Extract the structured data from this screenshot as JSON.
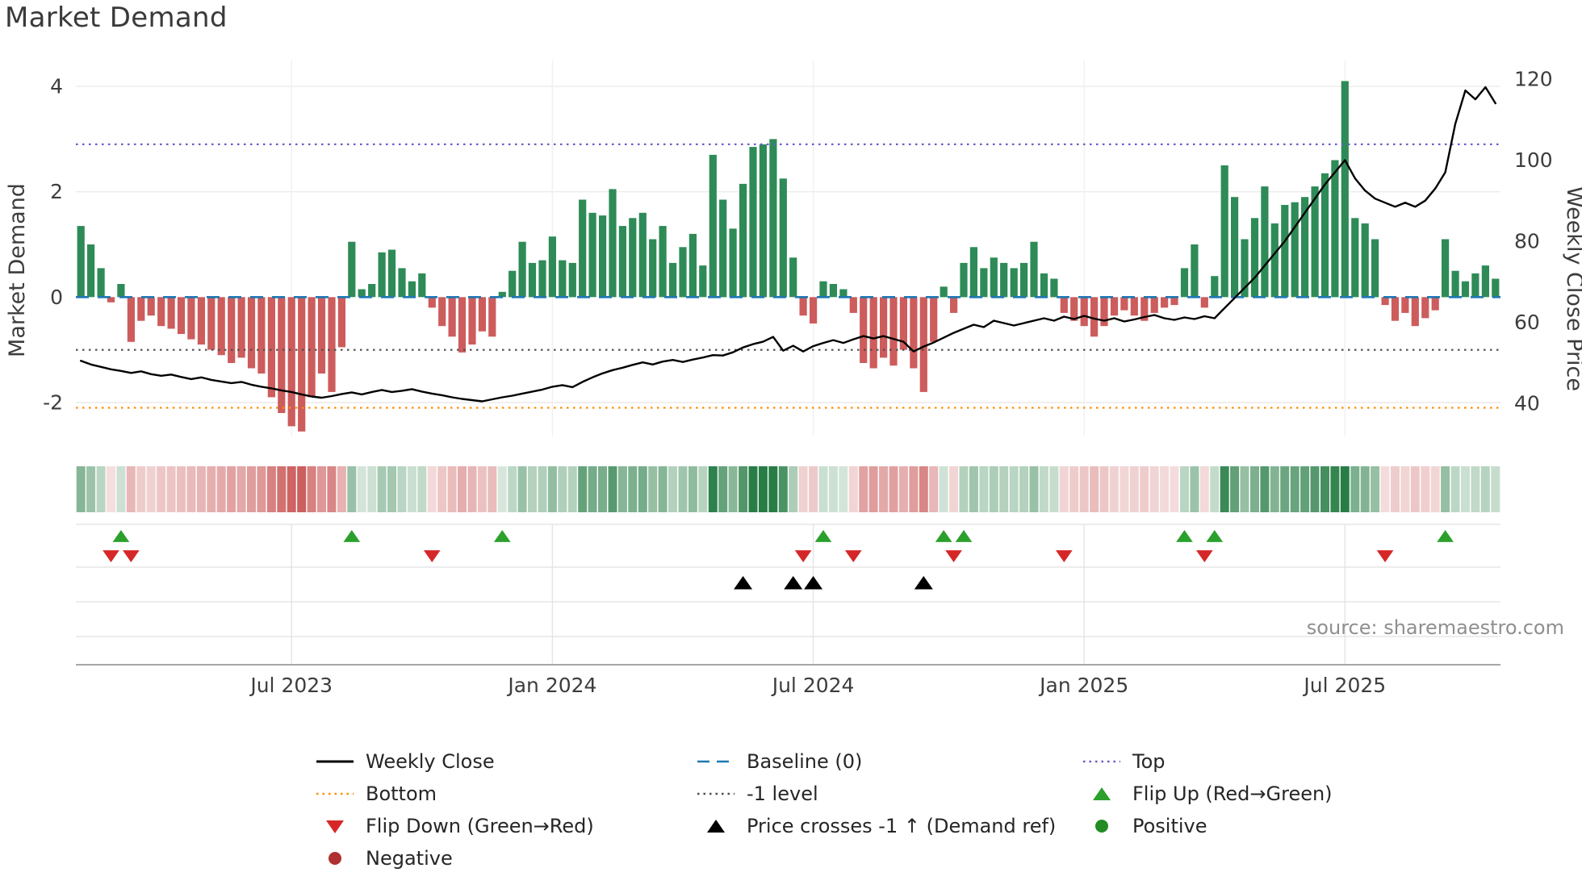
{
  "title": "Market Demand",
  "source": "source: sharemaestro.com",
  "legend": {
    "items": [
      {
        "id": "weekly-close",
        "label": "Weekly Close",
        "swatch": "solid-line",
        "color": "#000000"
      },
      {
        "id": "baseline-0",
        "label": "Baseline (0)",
        "swatch": "dashed-line",
        "color": "#1f77b4"
      },
      {
        "id": "top",
        "label": "Top",
        "swatch": "dotted-line",
        "color": "#6a5acd"
      },
      {
        "id": "bottom",
        "label": "Bottom",
        "swatch": "dotted-line",
        "color": "#ff8c00"
      },
      {
        "id": "minus-1-level",
        "label": "-1 level",
        "swatch": "dotted-line",
        "color": "#4d4d4d"
      },
      {
        "id": "flip-up",
        "label": "Flip Up (Red→Green)",
        "swatch": "triangle-up",
        "color": "#2ca02c"
      },
      {
        "id": "flip-down",
        "label": "Flip Down (Green→Red)",
        "swatch": "triangle-down",
        "color": "#d62728"
      },
      {
        "id": "price-crosses-minus-1",
        "label": "Price crosses -1 ↑ (Demand ref)",
        "swatch": "triangle-up",
        "color": "#000000"
      },
      {
        "id": "positive",
        "label": "Positive",
        "swatch": "circle",
        "color": "#228b22"
      },
      {
        "id": "negative",
        "label": "Negative",
        "swatch": "circle",
        "color": "#b03030"
      }
    ]
  },
  "chart_data": {
    "type": "combo",
    "title": "Market Demand",
    "x_unit": "week",
    "x_ticks": [
      {
        "label": "Jul 2023",
        "week": 21
      },
      {
        "label": "Jan 2024",
        "week": 47
      },
      {
        "label": "Jul 2024",
        "week": 73
      },
      {
        "label": "Jan 2025",
        "week": 100
      },
      {
        "label": "Jul 2025",
        "week": 126
      }
    ],
    "left_axis": {
      "label": "Market Demand",
      "ticks": [
        4,
        2,
        0,
        -2
      ],
      "range": [
        -2.63,
        4.49
      ]
    },
    "right_axis": {
      "label": "Weekly Close Price",
      "ticks": [
        120,
        100,
        80,
        60,
        40
      ],
      "range": [
        32,
        124.5
      ]
    },
    "grid": true,
    "series": [
      {
        "name": "Market Demand",
        "type": "bar",
        "axis": "left",
        "positive_color": "#2e8b57",
        "negative_color": "#cd5c5c",
        "values": [
          1.35,
          1.0,
          0.55,
          -0.1,
          0.25,
          -0.85,
          -0.45,
          -0.35,
          -0.55,
          -0.6,
          -0.7,
          -0.8,
          -0.9,
          -1.0,
          -1.1,
          -1.25,
          -1.15,
          -1.35,
          -1.45,
          -1.9,
          -2.2,
          -2.45,
          -2.55,
          -1.9,
          -1.45,
          -1.8,
          -0.95,
          1.05,
          0.15,
          0.25,
          0.85,
          0.9,
          0.55,
          0.3,
          0.45,
          -0.2,
          -0.55,
          -0.75,
          -1.05,
          -0.9,
          -0.65,
          -0.75,
          0.1,
          0.5,
          1.05,
          0.65,
          0.7,
          1.15,
          0.7,
          0.65,
          1.85,
          1.6,
          1.55,
          2.05,
          1.35,
          1.5,
          1.6,
          1.1,
          1.35,
          0.65,
          0.95,
          1.2,
          0.6,
          2.7,
          1.85,
          1.3,
          2.15,
          2.85,
          2.9,
          3.0,
          2.25,
          0.75,
          -0.35,
          -0.5,
          0.3,
          0.25,
          0.15,
          -0.3,
          -1.25,
          -1.35,
          -1.15,
          -1.3,
          -1.0,
          -1.35,
          -1.8,
          -0.85,
          0.2,
          -0.3,
          0.65,
          0.95,
          0.55,
          0.75,
          0.65,
          0.55,
          0.65,
          1.05,
          0.45,
          0.35,
          -0.3,
          -0.45,
          -0.55,
          -0.75,
          -0.55,
          -0.35,
          -0.25,
          -0.35,
          -0.45,
          -0.3,
          -0.2,
          -0.15,
          0.55,
          1.0,
          -0.2,
          0.4,
          2.5,
          1.9,
          1.1,
          1.5,
          2.1,
          1.4,
          1.75,
          1.8,
          1.9,
          2.1,
          2.35,
          2.6,
          4.1,
          1.5,
          1.4,
          1.1,
          -0.15,
          -0.45,
          -0.3,
          -0.55,
          -0.4,
          -0.25,
          1.1,
          0.5,
          0.3,
          0.45,
          0.6,
          0.35
        ]
      },
      {
        "name": "Weekly Close",
        "type": "line",
        "axis": "right",
        "color": "#000000",
        "values": [
          50.5,
          49.6,
          49.0,
          48.4,
          48.0,
          47.5,
          47.9,
          47.2,
          46.8,
          47.1,
          46.5,
          46.0,
          46.4,
          45.8,
          45.4,
          45.0,
          45.3,
          44.6,
          44.1,
          43.7,
          43.2,
          42.8,
          42.2,
          41.7,
          41.4,
          41.8,
          42.3,
          42.7,
          42.2,
          42.8,
          43.3,
          42.8,
          43.1,
          43.5,
          42.9,
          42.4,
          42.0,
          41.5,
          41.1,
          40.8,
          40.5,
          41.0,
          41.5,
          41.9,
          42.4,
          42.9,
          43.4,
          44.1,
          44.5,
          44.0,
          45.3,
          46.4,
          47.4,
          48.2,
          48.8,
          49.5,
          50.1,
          49.6,
          50.3,
          50.7,
          50.2,
          50.8,
          51.3,
          51.9,
          51.8,
          52.6,
          53.8,
          54.6,
          55.2,
          56.4,
          53.0,
          54.2,
          52.8,
          54.1,
          54.9,
          55.6,
          54.9,
          55.8,
          56.6,
          56.0,
          56.6,
          55.9,
          55.2,
          52.8,
          54.0,
          55.0,
          56.2,
          57.4,
          58.4,
          59.4,
          58.8,
          60.4,
          59.8,
          59.2,
          59.8,
          60.4,
          61.0,
          60.4,
          61.4,
          60.8,
          61.6,
          60.9,
          60.4,
          61.0,
          60.2,
          60.7,
          61.3,
          61.8,
          61.0,
          60.6,
          61.2,
          60.8,
          61.5,
          61.0,
          63.5,
          66.0,
          68.5,
          71.0,
          74.0,
          77.0,
          80.0,
          83.5,
          87.0,
          90.5,
          94.0,
          97.0,
          100.0,
          95.5,
          92.5,
          90.5,
          89.5,
          88.5,
          89.5,
          88.5,
          90.0,
          93.0,
          97.0,
          109.0,
          117.2,
          115.0,
          118.0,
          114.0
        ]
      }
    ],
    "thresholds": [
      {
        "id": "baseline-0",
        "name": "Baseline (0)",
        "value": 0,
        "color": "#1f77b4",
        "style": "dashed"
      },
      {
        "id": "top",
        "name": "Top",
        "value": 2.9,
        "color": "#6a5acd",
        "style": "dotted"
      },
      {
        "id": "minus-1",
        "name": "-1 level",
        "value": -1,
        "color": "#4d4d4d",
        "style": "dotted"
      },
      {
        "id": "bottom",
        "name": "Bottom",
        "value": -2.1,
        "color": "#ff8c00",
        "style": "dotted"
      }
    ],
    "markers": {
      "flip_up": {
        "label": "Flip Up (Red→Green)",
        "shape": "triangle-up",
        "color": "#2ca02c",
        "weeks": [
          4,
          27,
          42,
          74,
          86,
          88,
          110,
          113,
          136
        ]
      },
      "flip_down": {
        "label": "Flip Down (Green→Red)",
        "shape": "triangle-down",
        "color": "#d62728",
        "weeks": [
          3,
          5,
          35,
          72,
          77,
          87,
          98,
          112,
          130
        ]
      },
      "price_cross": {
        "label": "Price crosses -1 ↑ (Demand ref)",
        "shape": "triangle-up",
        "color": "#000000",
        "weeks": [
          66,
          71,
          73,
          84
        ]
      }
    },
    "heatmap_strip": {
      "derived_from": "Market Demand",
      "positive_color": "#287d46",
      "negative_color": "#c85252"
    }
  }
}
